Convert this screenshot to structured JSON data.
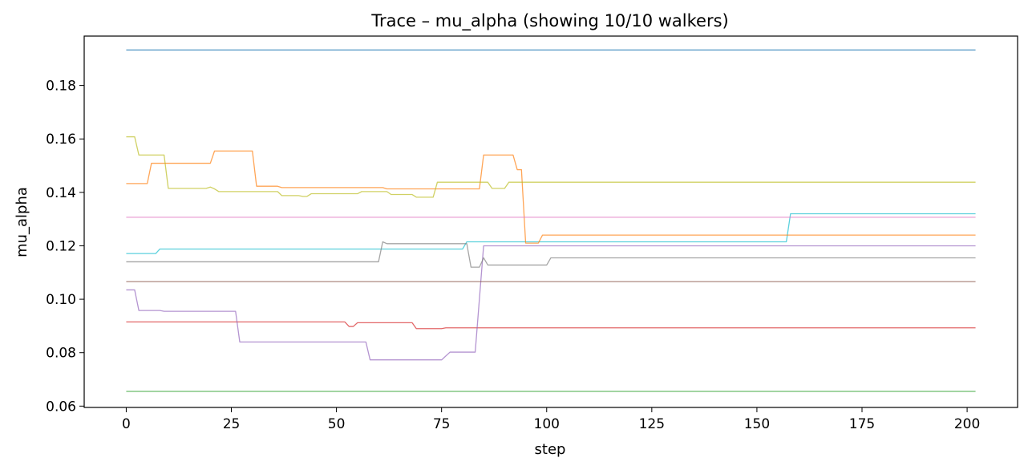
{
  "chart_data": {
    "type": "line",
    "title": "Trace – mu_alpha (showing 10/10 walkers)",
    "xlabel": "step",
    "ylabel": "mu_alpha",
    "xlim": [
      -10,
      212
    ],
    "ylim": [
      0.0595,
      0.1985
    ],
    "xticks": [
      0,
      25,
      50,
      75,
      100,
      125,
      150,
      175,
      200
    ],
    "yticks": [
      0.06,
      0.08,
      0.1,
      0.12,
      0.14,
      0.16,
      0.18
    ],
    "ytick_format": 2,
    "grid": false,
    "legend": "none",
    "x_max": 202,
    "series": [
      {
        "color": "#17becf",
        "points": [
          [
            0,
            0.1171
          ],
          [
            7,
            0.1171
          ],
          [
            8,
            0.1188
          ],
          [
            80,
            0.1188
          ],
          [
            81,
            0.1215
          ],
          [
            157,
            0.1215
          ],
          [
            158,
            0.132
          ],
          [
            202,
            0.132
          ]
        ]
      },
      {
        "color": "#ff7f0e",
        "points": [
          [
            0,
            0.1433
          ],
          [
            5,
            0.1433
          ],
          [
            6,
            0.1509
          ],
          [
            20,
            0.1509
          ],
          [
            21,
            0.1555
          ],
          [
            30,
            0.1555
          ],
          [
            31,
            0.1423
          ],
          [
            36,
            0.1423
          ],
          [
            37,
            0.1418
          ],
          [
            61,
            0.1418
          ],
          [
            62,
            0.1413
          ],
          [
            84,
            0.1413
          ],
          [
            85,
            0.154
          ],
          [
            92,
            0.154
          ],
          [
            93,
            0.1485
          ],
          [
            94,
            0.1485
          ],
          [
            95,
            0.121
          ],
          [
            98,
            0.121
          ],
          [
            99,
            0.124
          ],
          [
            202,
            0.124
          ]
        ]
      },
      {
        "color": "#2ca02c",
        "points": [
          [
            0,
            0.0655
          ],
          [
            202,
            0.0655
          ]
        ]
      },
      {
        "color": "#d62728",
        "points": [
          [
            0,
            0.0915
          ],
          [
            52,
            0.0915
          ],
          [
            53,
            0.0898
          ],
          [
            54,
            0.0898
          ],
          [
            55,
            0.0912
          ],
          [
            68,
            0.0912
          ],
          [
            69,
            0.089
          ],
          [
            75,
            0.089
          ],
          [
            76,
            0.0893
          ],
          [
            202,
            0.0893
          ]
        ]
      },
      {
        "color": "#9467bd",
        "points": [
          [
            0,
            0.1035
          ],
          [
            2,
            0.1035
          ],
          [
            3,
            0.0958
          ],
          [
            8,
            0.0958
          ],
          [
            9,
            0.0955
          ],
          [
            26,
            0.0955
          ],
          [
            27,
            0.084
          ],
          [
            57,
            0.084
          ],
          [
            58,
            0.0773
          ],
          [
            75,
            0.0773
          ],
          [
            77,
            0.0802
          ],
          [
            83,
            0.0802
          ],
          [
            85,
            0.12
          ],
          [
            202,
            0.12
          ]
        ]
      },
      {
        "color": "#8c564b",
        "points": [
          [
            0,
            0.1066
          ],
          [
            202,
            0.1066
          ]
        ]
      },
      {
        "color": "#e377c2",
        "points": [
          [
            0,
            0.1307
          ],
          [
            202,
            0.1307
          ]
        ]
      },
      {
        "color": "#7f7f7f",
        "points": [
          [
            0,
            0.114
          ],
          [
            60,
            0.114
          ],
          [
            61,
            0.1215
          ],
          [
            62,
            0.1208
          ],
          [
            81,
            0.1208
          ],
          [
            82,
            0.112
          ],
          [
            84,
            0.112
          ],
          [
            85,
            0.1155
          ],
          [
            86,
            0.1128
          ],
          [
            100,
            0.1128
          ],
          [
            101,
            0.1155
          ],
          [
            202,
            0.1155
          ]
        ]
      },
      {
        "color": "#bcbd22",
        "points": [
          [
            0,
            0.1608
          ],
          [
            2,
            0.1608
          ],
          [
            3,
            0.154
          ],
          [
            9,
            0.154
          ],
          [
            10,
            0.1415
          ],
          [
            19,
            0.1415
          ],
          [
            20,
            0.142
          ],
          [
            21,
            0.1413
          ],
          [
            22,
            0.1403
          ],
          [
            36,
            0.1403
          ],
          [
            37,
            0.1388
          ],
          [
            41,
            0.1388
          ],
          [
            42,
            0.1385
          ],
          [
            43,
            0.1385
          ],
          [
            44,
            0.1395
          ],
          [
            55,
            0.1395
          ],
          [
            56,
            0.1403
          ],
          [
            62,
            0.1403
          ],
          [
            63,
            0.1392
          ],
          [
            68,
            0.1392
          ],
          [
            69,
            0.1382
          ],
          [
            73,
            0.1382
          ],
          [
            74,
            0.1438
          ],
          [
            86,
            0.1438
          ],
          [
            87,
            0.1415
          ],
          [
            90,
            0.1415
          ],
          [
            91,
            0.1438
          ],
          [
            202,
            0.1438
          ]
        ]
      },
      {
        "color": "#1f77b4",
        "points": [
          [
            0,
            0.1933
          ],
          [
            202,
            0.1933
          ]
        ]
      }
    ]
  }
}
